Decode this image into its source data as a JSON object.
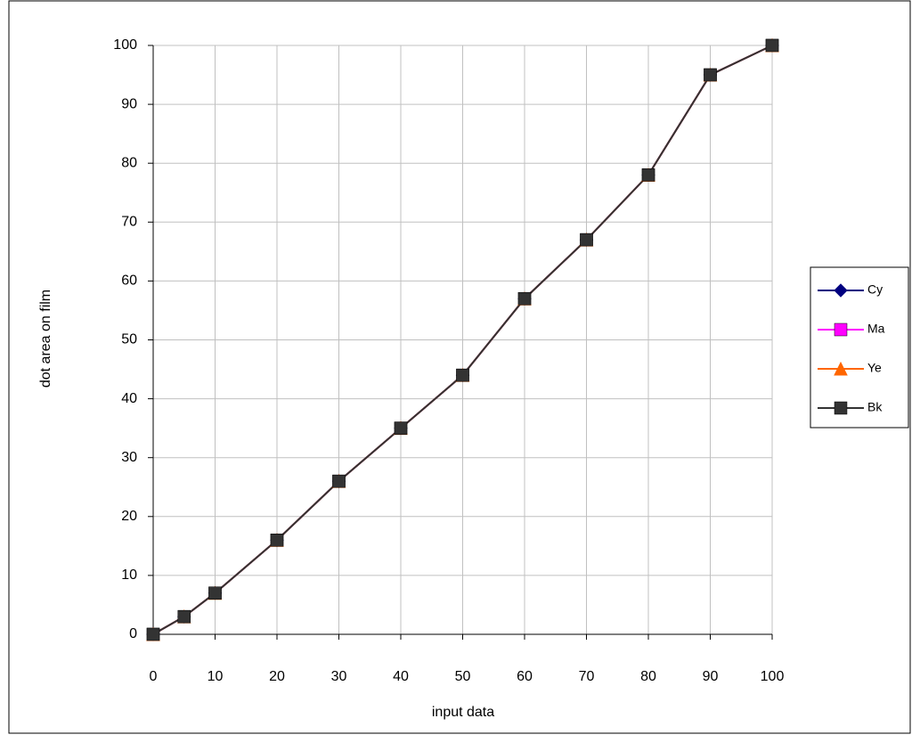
{
  "chart_data": {
    "type": "line",
    "x_label": "input data",
    "y_label": "dot area on film",
    "x": [
      0,
      5,
      10,
      20,
      30,
      40,
      50,
      60,
      70,
      80,
      90,
      100
    ],
    "series": [
      {
        "name": "Cy",
        "color": "#000080",
        "marker": "diamond",
        "values": [
          0,
          3,
          7,
          16,
          26,
          35,
          44,
          57,
          67,
          78,
          95,
          100
        ]
      },
      {
        "name": "Ma",
        "color": "#ff00ff",
        "marker": "square",
        "values": [
          0,
          3,
          7,
          16,
          26,
          35,
          44,
          57,
          67,
          78,
          95,
          100
        ]
      },
      {
        "name": "Ye",
        "color": "#ff6600",
        "marker": "triangle",
        "values": [
          0,
          3,
          7,
          16,
          26,
          35,
          44,
          57,
          67,
          78,
          95,
          100
        ]
      },
      {
        "name": "Bk",
        "color": "#333333",
        "marker": "square",
        "values": [
          0,
          3,
          7,
          16,
          26,
          35,
          44,
          57,
          67,
          78,
          95,
          100
        ]
      }
    ],
    "xlim": [
      0,
      100
    ],
    "xticks": [
      0,
      10,
      20,
      30,
      40,
      50,
      60,
      70,
      80,
      90,
      100
    ],
    "ylim": [
      0,
      100
    ],
    "yticks": [
      0,
      10,
      20,
      30,
      40,
      50,
      60,
      70,
      80,
      90,
      100
    ],
    "grid": true,
    "legend": "right"
  }
}
